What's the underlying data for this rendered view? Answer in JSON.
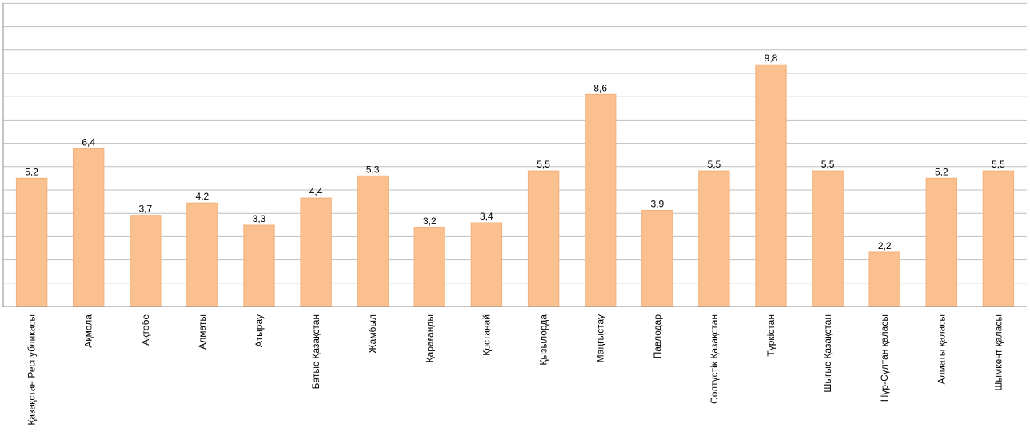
{
  "chart_data": {
    "type": "bar",
    "categories": [
      "Қазақстан Республикасы",
      "Ақмола",
      "Ақтөбе",
      "Алматы",
      "Атырау",
      "Батыс Қазақстан",
      "Жамбыл",
      "Қарағанды",
      "Қостанай",
      "Қызылорда",
      "Маңғыстау",
      "Павлодар",
      "Солтүстік Қазақстан",
      "Түркістан",
      "Шығыс Қазақстан",
      "Нұр-Сұлтан қаласы",
      "Алматы қаласы",
      "Шымкент қаласы"
    ],
    "values": [
      5.2,
      6.4,
      3.7,
      4.2,
      3.3,
      4.4,
      5.3,
      3.2,
      3.4,
      5.5,
      8.6,
      3.9,
      5.5,
      9.8,
      5.5,
      2.2,
      5.2,
      5.5
    ],
    "value_labels": [
      "5,2",
      "6,4",
      "3,7",
      "4,2",
      "3,3",
      "4,4",
      "5,3",
      "3,2",
      "3,4",
      "5,5",
      "8,6",
      "3,9",
      "5,5",
      "9,8",
      "5,5",
      "2,2",
      "5,2",
      "5,5"
    ],
    "title": "",
    "xlabel": "",
    "ylabel": "",
    "ylim": [
      0,
      12.3
    ],
    "grid": true,
    "legend": "none",
    "colors": {
      "bar": "#fac090",
      "bar_edge": "#f4b07a",
      "grid": "#bfbfbf",
      "axis": "#8c8c8c"
    }
  }
}
